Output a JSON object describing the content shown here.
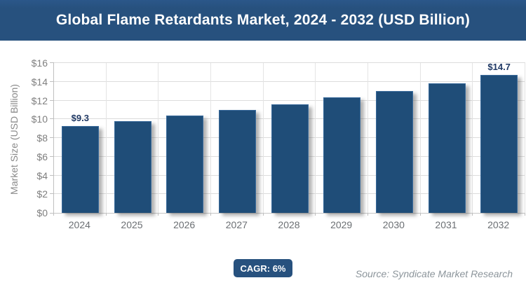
{
  "title": "Global Flame Retardants Market, 2024 - 2032 (USD Billion)",
  "chart_data": {
    "type": "bar",
    "title": "Global Flame Retardants Market, 2024 - 2032 (USD Billion)",
    "categories": [
      "2024",
      "2025",
      "2026",
      "2027",
      "2028",
      "2029",
      "2030",
      "2031",
      "2032"
    ],
    "values": [
      9.3,
      9.8,
      10.4,
      11.0,
      11.6,
      12.3,
      13.0,
      13.8,
      14.7
    ],
    "point_labels": [
      {
        "category": "2024",
        "index": 0,
        "text": "$9.3"
      },
      {
        "category": "2032",
        "index": 8,
        "text": "$14.7"
      }
    ],
    "xlabel": "",
    "ylabel": "Market Size (USD Billion)",
    "ylim": [
      0,
      16
    ],
    "yticks": [
      0,
      2,
      4,
      6,
      8,
      10,
      12,
      14,
      16
    ],
    "ytick_labels": [
      "$0",
      "$2",
      "$4",
      "$6",
      "$8",
      "$10",
      "$12",
      "$14",
      "$16"
    ],
    "grid": "horizontal-and-vertical",
    "legend": "none",
    "bar_color": "#1F4D78"
  },
  "footer": {
    "cagr_label": "CAGR: 6%",
    "source": "Source: Syndicate Market Research"
  },
  "colors": {
    "banner_background": "#27517E",
    "banner_text": "#FFFFFF",
    "bar_fill": "#1F4D78",
    "bar_border": "#3A6B9C",
    "data_label": "#1F3864",
    "gridline": "#DCDCDC",
    "axis_line": "#BFBFBF",
    "tick_text": "#7F7F7F",
    "badge_background": "#27517E",
    "source_text": "#8C959B"
  }
}
